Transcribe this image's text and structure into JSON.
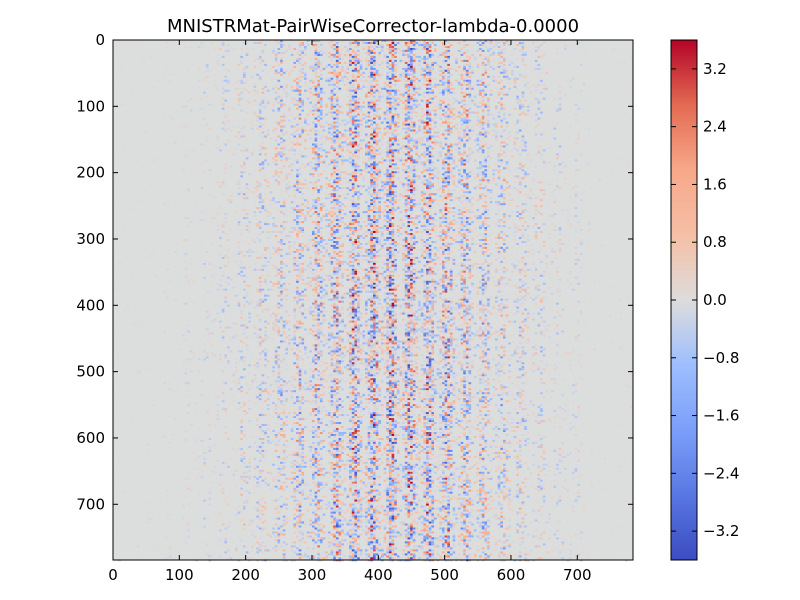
{
  "chart_data": {
    "type": "heatmap",
    "title": "MNISTRMat-PairWiseCorrector-lambda-0.0000",
    "xlabel": "",
    "ylabel": "",
    "xlim": [
      0,
      784
    ],
    "ylim": [
      784,
      0
    ],
    "x_ticks": [
      "0",
      "100",
      "200",
      "300",
      "400",
      "500",
      "600",
      "700"
    ],
    "y_ticks": [
      "0",
      "100",
      "200",
      "300",
      "400",
      "500",
      "600",
      "700"
    ],
    "colormap": "coolwarm",
    "color_range": [
      -3.6,
      3.6
    ],
    "colorbar_ticks": [
      "3.2",
      "2.4",
      "1.6",
      "0.8",
      "0.0",
      "−0.8",
      "−1.6",
      "−2.4",
      "−3.2"
    ],
    "colorbar_values": [
      3.2,
      2.4,
      1.6,
      0.8,
      0.0,
      -0.8,
      -1.6,
      -2.4,
      -3.2
    ],
    "grid": false,
    "description_values": "784x784 matrix; near-zero everywhere except vertical bands of alternating positive/negative values concentrated between columns ~100 and ~680, strongest around columns 300-550"
  },
  "colors": {
    "neutral": "#dcdddd",
    "positive_max": "#b40426",
    "negative_max": "#3b4cc0"
  }
}
